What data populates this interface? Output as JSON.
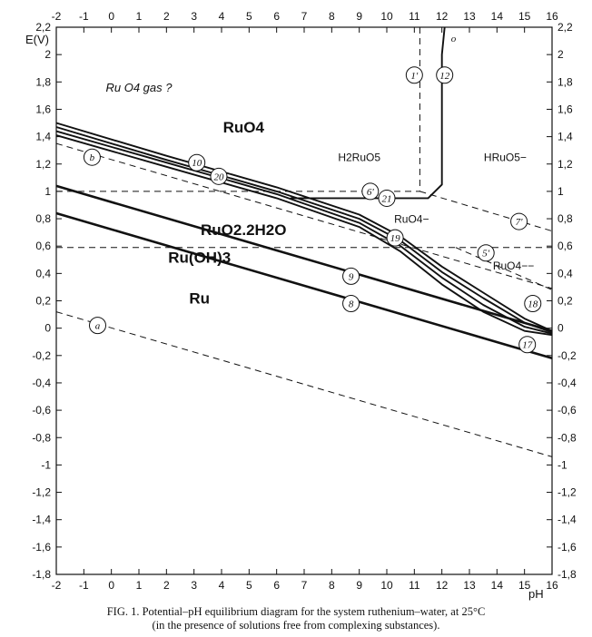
{
  "caption": {
    "line1": "FIG. 1. Potential–pH equilibrium diagram for the system ruthenium–water, at 25°C",
    "line2": "(in the presence of solutions free from complexing substances)."
  },
  "chart_data": {
    "type": "line",
    "xlabel": "pH",
    "ylabel": "E(V)",
    "xlim": [
      -2,
      16
    ],
    "ylim": [
      -1.8,
      2.2
    ],
    "x_ticks": [
      "-2",
      "-1",
      "0",
      "1",
      "2",
      "3",
      "4",
      "5",
      "6",
      "7",
      "8",
      "9",
      "10",
      "11",
      "12",
      "13",
      "14",
      "15",
      "16"
    ],
    "y_ticks": [
      "-1,8",
      "-1,6",
      "-1,4",
      "-1,2",
      "-1",
      "-0,8",
      "-0,6",
      "-0,4",
      "-0,2",
      "0",
      "0,2",
      "0,4",
      "0,6",
      "0,8",
      "1",
      "1,2",
      "1,4",
      "1,6",
      "1,8",
      "2",
      "2,2"
    ],
    "grid": false,
    "regions": [
      {
        "label": "Ru",
        "pH": 3.2,
        "E": 0.18,
        "size": "large"
      },
      {
        "label": "Ru(OH)3",
        "pH": 3.2,
        "E": 0.48,
        "size": "large"
      },
      {
        "label": "RuO2.2H2O",
        "pH": 4.8,
        "E": 0.68,
        "size": "large"
      },
      {
        "label": "RuO4",
        "pH": 4.8,
        "E": 1.43,
        "size": "large"
      },
      {
        "label": "Ru O4 gas ?",
        "pH": 1.0,
        "E": 1.73,
        "size": "italic"
      },
      {
        "label": "H2RuO5",
        "pH": 9.0,
        "E": 1.22,
        "size": "small"
      },
      {
        "label": "HRuO5−",
        "pH": 14.3,
        "E": 1.22,
        "size": "small"
      },
      {
        "label": "RuO4−",
        "pH": 10.9,
        "E": 0.77,
        "size": "small"
      },
      {
        "label": "RuO4−−",
        "pH": 14.6,
        "E": 0.43,
        "size": "small"
      }
    ],
    "series": [
      {
        "name": "a",
        "style": "dashed",
        "x": [
          -2,
          16
        ],
        "y": [
          0.12,
          -0.94
        ]
      },
      {
        "name": "b",
        "style": "dashed",
        "x": [
          -2,
          16
        ],
        "y": [
          1.35,
          0.29
        ]
      },
      {
        "name": "8",
        "style": "solid",
        "x": [
          -2,
          16
        ],
        "y": [
          0.84,
          -0.22
        ]
      },
      {
        "name": "9",
        "style": "solid",
        "x": [
          -2,
          16
        ],
        "y": [
          1.04,
          -0.02
        ]
      },
      {
        "name": "10",
        "style": "solid",
        "x": [
          -2,
          2,
          6,
          9,
          10.5,
          12,
          13.5,
          15,
          16
        ],
        "y": [
          1.5,
          1.26,
          1.03,
          0.83,
          0.67,
          0.45,
          0.26,
          0.07,
          -0.02
        ]
      },
      {
        "name": "20",
        "style": "solid",
        "x": [
          -2,
          2,
          6,
          9,
          10.5,
          12,
          13.5,
          15,
          16
        ],
        "y": [
          1.47,
          1.23,
          1.0,
          0.8,
          0.64,
          0.41,
          0.22,
          0.04,
          -0.03
        ]
      },
      {
        "name": "19",
        "style": "solid",
        "x": [
          -2,
          2,
          6,
          9,
          10.5,
          12,
          13.5,
          15,
          16
        ],
        "y": [
          1.44,
          1.21,
          0.98,
          0.77,
          0.6,
          0.37,
          0.17,
          0.01,
          -0.04
        ]
      },
      {
        "name": "18",
        "style": "solid",
        "x": [
          -2,
          2,
          6,
          9,
          10.5,
          12,
          13.5,
          15,
          16
        ],
        "y": [
          1.41,
          1.18,
          0.95,
          0.74,
          0.56,
          0.32,
          0.12,
          -0.02,
          -0.05
        ]
      },
      {
        "name": "12",
        "style": "solid",
        "x": [
          6.5,
          11.5,
          12.0,
          12.0,
          12.1
        ],
        "y": [
          0.95,
          0.95,
          1.05,
          2.0,
          2.2
        ]
      },
      {
        "name": "1'",
        "style": "dashed",
        "x": [
          11.2,
          11.2
        ],
        "y": [
          2.2,
          1.0
        ]
      },
      {
        "name": "6'",
        "style": "dashed",
        "x": [
          -2,
          11.2
        ],
        "y": [
          1.0,
          1.0
        ]
      },
      {
        "name": "7'",
        "style": "dashed",
        "x": [
          11.2,
          16
        ],
        "y": [
          1.0,
          0.71
        ]
      },
      {
        "name": "5'",
        "style": "dashed",
        "x": [
          -2,
          16
        ],
        "y": [
          0.59,
          0.59
        ]
      },
      {
        "name": "17",
        "style": "dashed",
        "x": [
          12.5,
          16
        ],
        "y": [
          0.59,
          0.28
        ]
      }
    ],
    "line_labels": [
      {
        "label": "a",
        "pH": -0.5,
        "E": 0.02
      },
      {
        "label": "b",
        "pH": -0.7,
        "E": 1.25
      },
      {
        "label": "8",
        "pH": 8.7,
        "E": 0.18
      },
      {
        "label": "9",
        "pH": 8.7,
        "E": 0.38
      },
      {
        "label": "10",
        "pH": 3.1,
        "E": 1.21
      },
      {
        "label": "20",
        "pH": 3.9,
        "E": 1.11
      },
      {
        "label": "19",
        "pH": 10.3,
        "E": 0.66
      },
      {
        "label": "18",
        "pH": 15.3,
        "E": 0.18
      },
      {
        "label": "17",
        "pH": 15.1,
        "E": -0.12
      },
      {
        "label": "21",
        "pH": 10.0,
        "E": 0.95
      },
      {
        "label": "12",
        "pH": 12.1,
        "E": 1.85
      },
      {
        "label": "1'",
        "pH": 11.0,
        "E": 1.85
      },
      {
        "label": "6'",
        "pH": 9.4,
        "E": 1.0
      },
      {
        "label": "7'",
        "pH": 14.8,
        "E": 0.78
      },
      {
        "label": "5'",
        "pH": 13.6,
        "E": 0.55
      }
    ],
    "small_marks": {
      "label": "o",
      "pH": 12.2,
      "E": 2.12
    }
  }
}
